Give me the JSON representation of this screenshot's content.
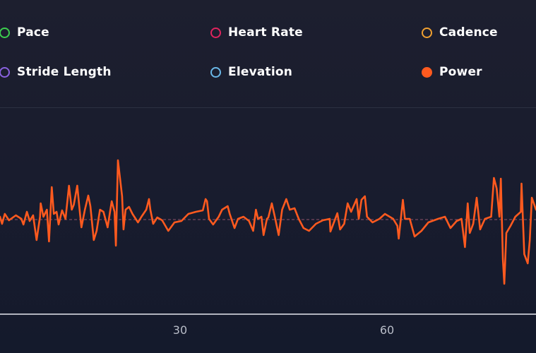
{
  "legend": [
    {
      "label": "Pace",
      "color": "#3ccf4e",
      "filled": false
    },
    {
      "label": "Heart Rate",
      "color": "#e0245e",
      "filled": false
    },
    {
      "label": "Cadence",
      "color": "#f0a030",
      "filled": false
    },
    {
      "label": "Stride Length",
      "color": "#8a62e0",
      "filled": false
    },
    {
      "label": "Elevation",
      "color": "#6ab8e8",
      "filled": false
    },
    {
      "label": "Power",
      "color": "#ff5a1f",
      "filled": true
    }
  ],
  "chart_data": {
    "type": "line",
    "title": "",
    "xlabel": "",
    "ylabel": "",
    "xlim": [
      3.9,
      81.6
    ],
    "ylim": [
      0,
      285
    ],
    "xticks": [
      30,
      60
    ],
    "grid": false,
    "mean_line": 134,
    "series": [
      {
        "name": "Power",
        "color": "#ff5a1f",
        "x": [
          3.9,
          4.2,
          4.6,
          5.2,
          6.2,
          7.0,
          7.3,
          7.8,
          8.2,
          8.7,
          9.2,
          9.7,
          9.8,
          10.2,
          10.7,
          11.0,
          11.4,
          11.7,
          12.1,
          12.4,
          12.9,
          13.4,
          13.9,
          14.3,
          14.6,
          15.1,
          15.5,
          15.7,
          16.2,
          16.7,
          17.0,
          17.5,
          17.9,
          18.4,
          18.9,
          19.5,
          20.1,
          20.5,
          20.7,
          21.0,
          21.3,
          21.6,
          21.8,
          22.1,
          22.6,
          23.1,
          23.9,
          24.4,
          25.1,
          25.5,
          25.7,
          26.1,
          26.7,
          27.4,
          28.3,
          29.2,
          30.2,
          31.2,
          32.3,
          33.3,
          33.7,
          33.9,
          34.2,
          34.8,
          35.6,
          36.1,
          36.9,
          37.2,
          37.9,
          38.4,
          39.2,
          40.0,
          40.6,
          41.0,
          41.3,
          41.8,
          42.1,
          42.6,
          42.8,
          43.3,
          43.8,
          44.3,
          44.8,
          45.4,
          45.9,
          46.6,
          47.2,
          47.9,
          48.7,
          49.7,
          50.7,
          51.7,
          51.8,
          52.5,
          52.8,
          53.2,
          53.8,
          54.3,
          54.8,
          55.6,
          55.9,
          56.3,
          56.8,
          57.1,
          57.9,
          58.9,
          59.7,
          60.9,
          61.5,
          61.7,
          62.3,
          62.6,
          63.3,
          64.0,
          65.0,
          66.0,
          67.4,
          68.4,
          69.2,
          70.1,
          70.8,
          71.3,
          71.7,
          72.0,
          72.5,
          73.0,
          73.5,
          74.2,
          75.1,
          75.5,
          75.9,
          76.3,
          76.5,
          76.8,
          77.0,
          77.3,
          77.9,
          78.6,
          79.4,
          79.5,
          79.9,
          80.4,
          80.7,
          81.0,
          81.6
        ],
        "y": [
          138,
          128,
          142,
          133,
          140,
          135,
          127,
          145,
          132,
          140,
          105,
          138,
          157,
          138,
          148,
          103,
          180,
          142,
          145,
          127,
          147,
          135,
          182,
          148,
          155,
          182,
          142,
          123,
          148,
          168,
          153,
          105,
          118,
          148,
          145,
          123,
          160,
          145,
          97,
          218,
          192,
          167,
          120,
          148,
          152,
          142,
          130,
          138,
          148,
          163,
          148,
          128,
          137,
          133,
          118,
          130,
          132,
          142,
          145,
          147,
          163,
          160,
          135,
          127,
          138,
          148,
          153,
          142,
          122,
          135,
          138,
          132,
          118,
          148,
          135,
          138,
          112,
          135,
          137,
          157,
          135,
          112,
          148,
          163,
          148,
          150,
          135,
          122,
          118,
          128,
          133,
          135,
          117,
          135,
          143,
          120,
          128,
          157,
          145,
          163,
          135,
          162,
          167,
          138,
          130,
          135,
          142,
          135,
          125,
          107,
          162,
          135,
          135,
          110,
          118,
          130,
          135,
          138,
          122,
          132,
          135,
          95,
          157,
          115,
          128,
          165,
          120,
          135,
          138,
          193,
          178,
          138,
          192,
          78,
          43,
          115,
          125,
          138,
          145,
          185,
          85,
          72,
          105,
          165,
          148
        ]
      }
    ]
  }
}
